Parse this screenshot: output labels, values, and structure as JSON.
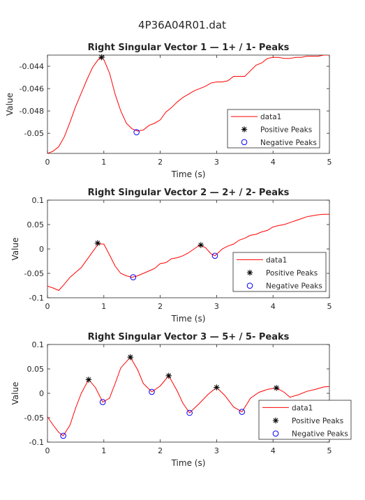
{
  "figure": {
    "title": "4P36A04R01.dat"
  },
  "chart_data": [
    {
      "type": "line",
      "title": "Right Singular Vector 1 — 1+ / 1- Peaks",
      "xlabel": "Time (s)",
      "ylabel": "Value",
      "xlim": [
        0,
        5
      ],
      "ylim": [
        -0.0518,
        -0.043
      ],
      "xticks": [
        0,
        1,
        2,
        3,
        4,
        5
      ],
      "xtick_labels": [
        "0",
        "1",
        "2",
        "3",
        "4",
        "5"
      ],
      "yticks": [
        -0.05,
        -0.048,
        -0.046,
        -0.044
      ],
      "ytick_labels": [
        "-0.05",
        "-0.048",
        "-0.046",
        "-0.044"
      ],
      "grid": false,
      "legend": {
        "location": "bottom-right",
        "entries": [
          "data1",
          "Positive Peaks",
          "Negative Peaks"
        ]
      },
      "series": [
        {
          "name": "data1",
          "color": "#ff0000",
          "x": [
            0,
            0.1,
            0.2,
            0.3,
            0.4,
            0.5,
            0.6,
            0.7,
            0.8,
            0.9,
            0.95,
            1.0,
            1.1,
            1.2,
            1.3,
            1.4,
            1.5,
            1.6,
            1.7,
            1.8,
            1.9,
            2.0,
            2.1,
            2.2,
            2.3,
            2.4,
            2.5,
            2.6,
            2.7,
            2.8,
            2.9,
            3.0,
            3.1,
            3.2,
            3.3,
            3.4,
            3.5,
            3.6,
            3.7,
            3.8,
            3.9,
            4.0,
            4.1,
            4.2,
            4.3,
            4.4,
            4.5,
            4.6,
            4.7,
            4.8,
            4.9,
            5.0
          ],
          "y": [
            -0.0518,
            -0.0516,
            -0.0512,
            -0.0503,
            -0.049,
            -0.0476,
            -0.0464,
            -0.0452,
            -0.0441,
            -0.0434,
            -0.0432,
            -0.0434,
            -0.0446,
            -0.0465,
            -0.048,
            -0.0491,
            -0.0496,
            -0.0498,
            -0.0497,
            -0.0493,
            -0.0491,
            -0.0488,
            -0.0481,
            -0.0477,
            -0.0472,
            -0.0468,
            -0.0465,
            -0.0462,
            -0.046,
            -0.0458,
            -0.0455,
            -0.0454,
            -0.0454,
            -0.0453,
            -0.0449,
            -0.0449,
            -0.0449,
            -0.0444,
            -0.0439,
            -0.0437,
            -0.0433,
            -0.0432,
            -0.0432,
            -0.0433,
            -0.0433,
            -0.0432,
            -0.0432,
            -0.0431,
            -0.0431,
            -0.0431,
            -0.043,
            -0.043
          ]
        },
        {
          "name": "Positive Peaks",
          "marker": "*",
          "color": "#000000",
          "x": [
            0.96
          ],
          "y": [
            -0.0432
          ]
        },
        {
          "name": "Negative Peaks",
          "marker": "o",
          "color": "#0000ff",
          "x": [
            1.58
          ],
          "y": [
            -0.0499
          ]
        }
      ]
    },
    {
      "type": "line",
      "title": "Right Singular Vector 2 — 2+ / 2- Peaks",
      "xlabel": "Time (s)",
      "ylabel": "Value",
      "xlim": [
        0,
        5
      ],
      "ylim": [
        -0.1,
        0.1
      ],
      "xticks": [
        0,
        1,
        2,
        3,
        4,
        5
      ],
      "xtick_labels": [
        "0",
        "1",
        "2",
        "3",
        "4",
        "5"
      ],
      "yticks": [
        -0.1,
        -0.05,
        0,
        0.05,
        0.1
      ],
      "ytick_labels": [
        "-0.1",
        "-0.05",
        "0",
        "0.05",
        "0.1"
      ],
      "grid": false,
      "legend": {
        "location": "bottom-right",
        "entries": [
          "data1",
          "Positive Peaks",
          "Negative Peaks"
        ]
      },
      "series": [
        {
          "name": "data1",
          "color": "#ff0000",
          "x": [
            0,
            0.1,
            0.2,
            0.3,
            0.4,
            0.5,
            0.6,
            0.7,
            0.8,
            0.9,
            1.0,
            1.1,
            1.2,
            1.3,
            1.4,
            1.5,
            1.6,
            1.7,
            1.8,
            1.9,
            2.0,
            2.1,
            2.2,
            2.3,
            2.4,
            2.5,
            2.6,
            2.7,
            2.8,
            2.9,
            2.97,
            3.1,
            3.2,
            3.3,
            3.4,
            3.5,
            3.6,
            3.7,
            3.8,
            3.9,
            4.0,
            4.1,
            4.2,
            4.3,
            4.4,
            4.5,
            4.6,
            4.7,
            4.8,
            4.9,
            5.0
          ],
          "y": [
            -0.076,
            -0.08,
            -0.085,
            -0.072,
            -0.058,
            -0.048,
            -0.038,
            -0.022,
            -0.006,
            0.01,
            0.01,
            -0.012,
            -0.035,
            -0.05,
            -0.055,
            -0.058,
            -0.055,
            -0.05,
            -0.045,
            -0.04,
            -0.03,
            -0.028,
            -0.02,
            -0.018,
            -0.014,
            -0.008,
            0.0,
            0.008,
            0.003,
            -0.01,
            -0.014,
            0.0,
            0.006,
            0.01,
            0.018,
            0.022,
            0.028,
            0.03,
            0.035,
            0.038,
            0.045,
            0.048,
            0.05,
            0.054,
            0.058,
            0.062,
            0.066,
            0.068,
            0.07,
            0.071,
            0.071
          ]
        },
        {
          "name": "Positive Peaks",
          "marker": "*",
          "color": "#000000",
          "x": [
            0.89,
            2.72
          ],
          "y": [
            0.012,
            0.008
          ]
        },
        {
          "name": "Negative Peaks",
          "marker": "o",
          "color": "#0000ff",
          "x": [
            1.52,
            2.97
          ],
          "y": [
            -0.058,
            -0.014
          ]
        }
      ]
    },
    {
      "type": "line",
      "title": "Right Singular Vector 3 — 5+ / 5- Peaks",
      "xlabel": "Time (s)",
      "ylabel": "Value",
      "xlim": [
        0,
        5
      ],
      "ylim": [
        -0.1,
        0.1
      ],
      "xticks": [
        0,
        1,
        2,
        3,
        4,
        5
      ],
      "xtick_labels": [
        "0",
        "1",
        "2",
        "3",
        "4",
        "5"
      ],
      "yticks": [
        -0.1,
        -0.05,
        0,
        0.05,
        0.1
      ],
      "ytick_labels": [
        "-0.1",
        "-0.05",
        "0",
        "0.05",
        "0.1"
      ],
      "grid": false,
      "legend": {
        "location": "bottom-right",
        "entries": [
          "data1",
          "Positive Peaks",
          "Negative Peaks"
        ]
      },
      "series": [
        {
          "name": "data1",
          "color": "#ff0000",
          "x": [
            0,
            0.1,
            0.2,
            0.28,
            0.4,
            0.5,
            0.6,
            0.73,
            0.85,
            0.98,
            1.1,
            1.2,
            1.3,
            1.47,
            1.6,
            1.7,
            1.85,
            2.0,
            2.15,
            2.3,
            2.4,
            2.52,
            2.7,
            2.85,
            3.0,
            3.15,
            3.3,
            3.45,
            3.6,
            3.75,
            3.9,
            4.06,
            4.2,
            4.3,
            4.45,
            4.6,
            4.75,
            4.9,
            5.0
          ],
          "y": [
            -0.048,
            -0.065,
            -0.08,
            -0.087,
            -0.065,
            -0.03,
            0.0,
            0.028,
            0.012,
            -0.018,
            -0.01,
            0.02,
            0.052,
            0.074,
            0.048,
            0.02,
            0.003,
            0.015,
            0.036,
            0.005,
            -0.02,
            -0.04,
            -0.02,
            -0.002,
            0.012,
            -0.005,
            -0.028,
            -0.038,
            -0.01,
            0.002,
            0.008,
            0.011,
            0.002,
            -0.008,
            -0.003,
            0.004,
            0.008,
            0.013,
            0.014
          ]
        },
        {
          "name": "Positive Peaks",
          "marker": "*",
          "color": "#000000",
          "x": [
            0.73,
            1.47,
            2.15,
            3.0,
            4.06
          ],
          "y": [
            0.028,
            0.074,
            0.036,
            0.012,
            0.011
          ]
        },
        {
          "name": "Negative Peaks",
          "marker": "o",
          "color": "#0000ff",
          "x": [
            0.28,
            0.98,
            1.85,
            2.52,
            3.45
          ],
          "y": [
            -0.087,
            -0.018,
            0.003,
            -0.04,
            -0.038
          ]
        }
      ]
    }
  ]
}
